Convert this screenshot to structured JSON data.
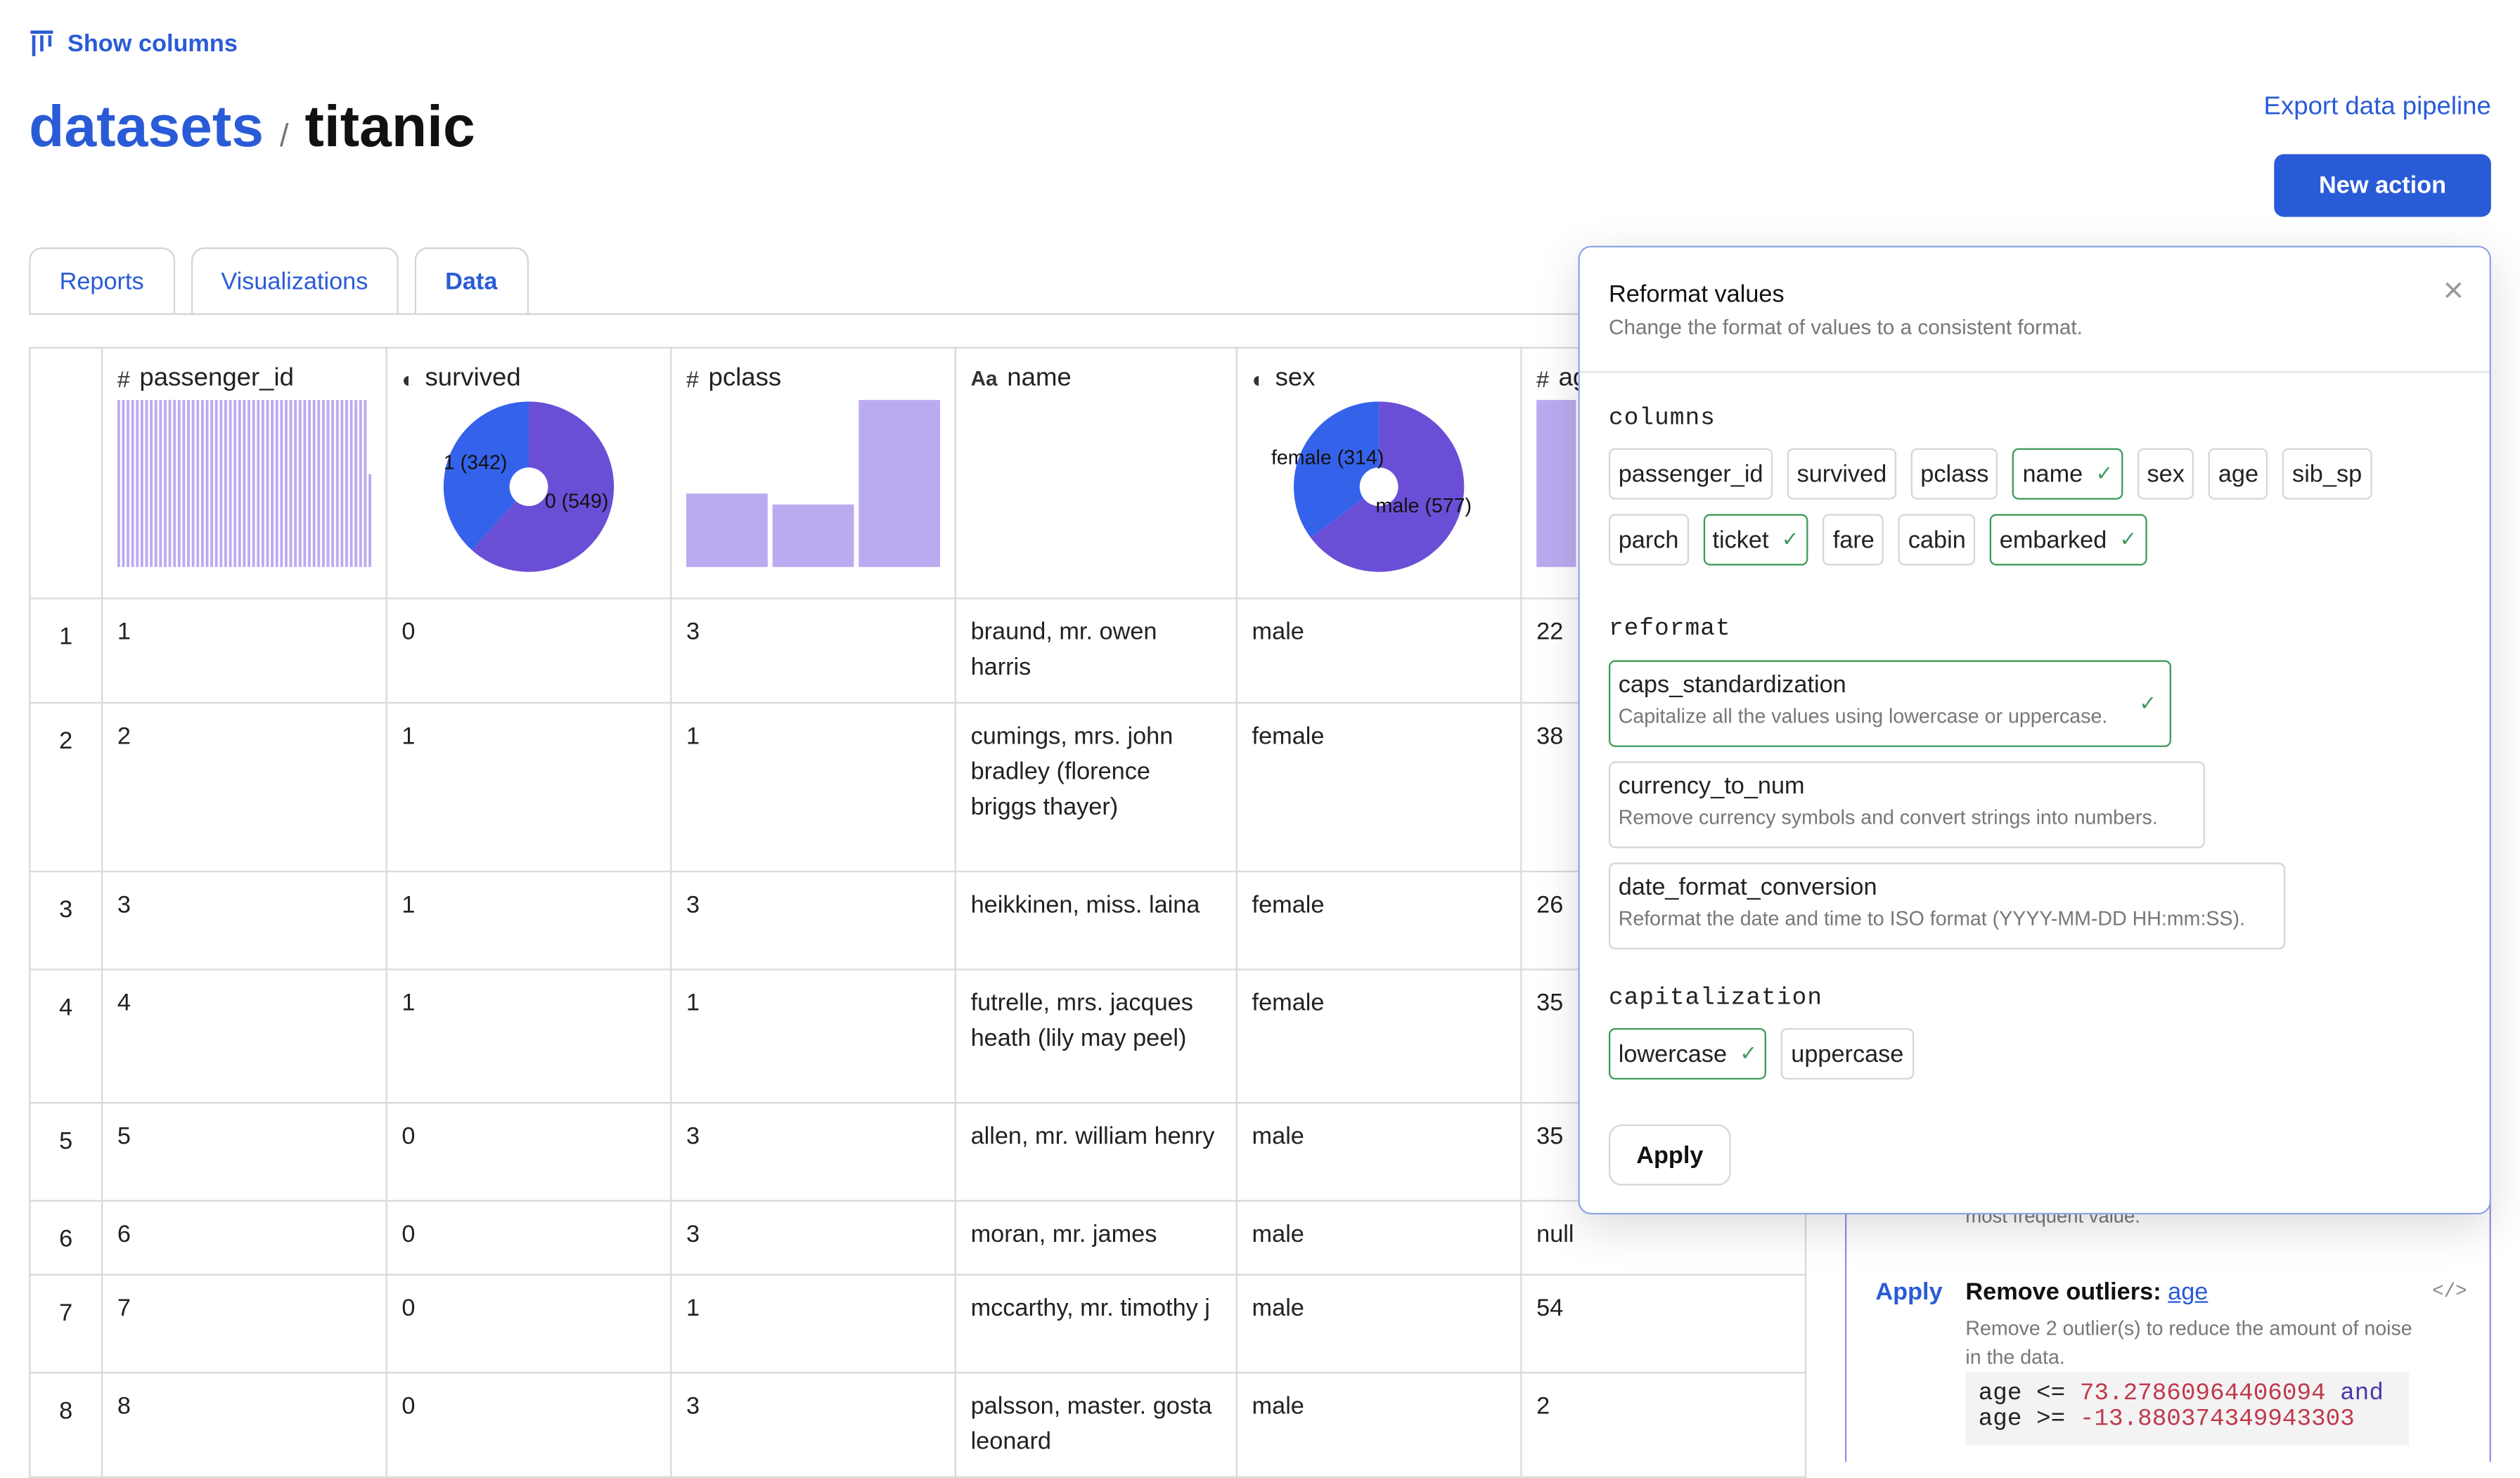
{
  "header": {
    "show_columns_label": "Show columns",
    "breadcrumb_root": "datasets",
    "breadcrumb_sep": "/",
    "breadcrumb_current": "titanic",
    "export_label": "Export data pipeline",
    "new_action_label": "New action"
  },
  "tabs": [
    {
      "label": "Reports"
    },
    {
      "label": "Visualizations"
    },
    {
      "label": "Data"
    }
  ],
  "table": {
    "columns": [
      {
        "type_icon": "#",
        "label": "passenger_id",
        "chart": "histogram"
      },
      {
        "type_icon": "toggle",
        "label": "survived",
        "chart": "pie"
      },
      {
        "type_icon": "#",
        "label": "pclass",
        "chart": "bar"
      },
      {
        "type_icon": "Aa",
        "label": "name",
        "chart": "none"
      },
      {
        "type_icon": "toggle",
        "label": "sex",
        "chart": "pie"
      },
      {
        "type_icon": "#",
        "label": "ag",
        "chart": "histogram"
      }
    ],
    "rows": [
      {
        "num": "1",
        "cells": [
          "1",
          "0",
          "3",
          "braund, mr. owen harris",
          "male",
          "22"
        ]
      },
      {
        "num": "2",
        "cells": [
          "2",
          "1",
          "1",
          "cumings, mrs. john bradley (florence briggs thayer)",
          "female",
          "38"
        ]
      },
      {
        "num": "3",
        "cells": [
          "3",
          "1",
          "3",
          "heikkinen, miss. laina",
          "female",
          "26"
        ]
      },
      {
        "num": "4",
        "cells": [
          "4",
          "1",
          "1",
          "futrelle, mrs. jacques heath (lily may peel)",
          "female",
          "35"
        ]
      },
      {
        "num": "5",
        "cells": [
          "5",
          "0",
          "3",
          "allen, mr. william henry",
          "male",
          "35"
        ]
      },
      {
        "num": "6",
        "cells": [
          "6",
          "0",
          "3",
          "moran, mr. james",
          "male",
          "null"
        ]
      },
      {
        "num": "7",
        "cells": [
          "7",
          "0",
          "1",
          "mccarthy, mr. timothy j",
          "male",
          "54"
        ]
      },
      {
        "num": "8",
        "cells": [
          "8",
          "0",
          "3",
          "palsson, master. gosta leonard",
          "male",
          "2"
        ]
      }
    ]
  },
  "chart_data": [
    {
      "type": "pie",
      "column": "survived",
      "slices": [
        {
          "label": "1 (342)",
          "value": 342,
          "color": "#3562ea"
        },
        {
          "label": "0 (549)",
          "value": 549,
          "color": "#6a4fd6"
        }
      ]
    },
    {
      "type": "pie",
      "column": "sex",
      "slices": [
        {
          "label": "female (314)",
          "value": 314,
          "color": "#3562ea"
        },
        {
          "label": "male (577)",
          "value": 577,
          "color": "#6a4fd6"
        }
      ]
    },
    {
      "type": "bar",
      "column": "pclass",
      "categories": [
        "1",
        "2",
        "3"
      ],
      "values": [
        216,
        184,
        491
      ],
      "color": "#bcaaf0"
    },
    {
      "type": "bar",
      "column": "passenger_id",
      "values": [
        9,
        9,
        9,
        9,
        9,
        9,
        9,
        9,
        9,
        9,
        9,
        9,
        9,
        9,
        9,
        9,
        9,
        9,
        9,
        9,
        9,
        9,
        9,
        9,
        9,
        9,
        9,
        9,
        9,
        9,
        9,
        9,
        9,
        9,
        9,
        9,
        9,
        9,
        9,
        9,
        9,
        9,
        9,
        9,
        9,
        9,
        9,
        9,
        9,
        9,
        9,
        9,
        9,
        9,
        5
      ],
      "color": "#bcaaf0"
    },
    {
      "type": "bar",
      "column": "ag",
      "values": [
        4,
        2,
        2.2,
        1.8,
        1.1,
        3
      ],
      "color": "#bcaaf0"
    }
  ],
  "side_panel": {
    "faded_text": "most frequent value.",
    "apply_label": "Apply",
    "title": "Remove outliers",
    "title_sep": ":",
    "title_link": "age",
    "code_icon": "</>",
    "description": "Remove 2 outlier(s) to reduce the amount of noise in the data.",
    "code_line1_var": "age",
    "code_line1_op": "<=",
    "code_line1_num": "73.27860964406094",
    "code_line1_kw": "and",
    "code_line2_var": "age",
    "code_line2_op": ">=",
    "code_line2_num": "-13.880374349943303"
  },
  "popover": {
    "title": "Reformat values",
    "subtitle": "Change the format of values to a consistent format.",
    "close_icon": "×",
    "columns_label": "columns",
    "columns": [
      {
        "label": "passenger_id",
        "selected": false
      },
      {
        "label": "survived",
        "selected": false
      },
      {
        "label": "pclass",
        "selected": false
      },
      {
        "label": "name",
        "selected": true
      },
      {
        "label": "sex",
        "selected": false
      },
      {
        "label": "age",
        "selected": false
      },
      {
        "label": "sib_sp",
        "selected": false
      },
      {
        "label": "parch",
        "selected": false
      },
      {
        "label": "ticket",
        "selected": true
      },
      {
        "label": "fare",
        "selected": false
      },
      {
        "label": "cabin",
        "selected": false
      },
      {
        "label": "embarked",
        "selected": true
      }
    ],
    "reformat_label": "reformat",
    "reformat_options": [
      {
        "name": "caps_standardization",
        "desc": "Capitalize all the values using lowercase or uppercase.",
        "selected": true
      },
      {
        "name": "currency_to_num",
        "desc": "Remove currency symbols and convert strings into numbers.",
        "selected": false
      },
      {
        "name": "date_format_conversion",
        "desc": "Reformat the date and time to ISO format (YYYY-MM-DD HH:mm:SS).",
        "selected": false
      }
    ],
    "capitalization_label": "capitalization",
    "capitalization": [
      {
        "label": "lowercase",
        "selected": true
      },
      {
        "label": "uppercase",
        "selected": false
      }
    ],
    "apply_label": "Apply"
  }
}
